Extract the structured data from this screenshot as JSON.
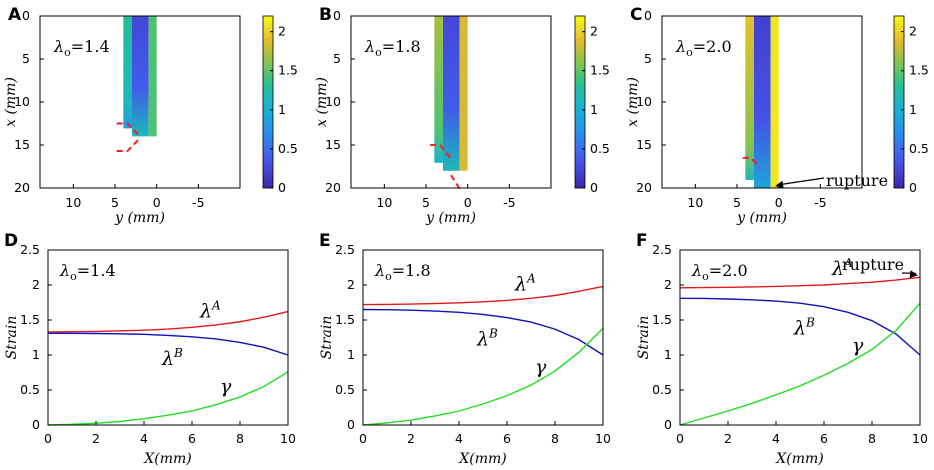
{
  "figure": {
    "panel_letters": [
      "A",
      "B",
      "C",
      "D",
      "E",
      "F"
    ],
    "colorbar": {
      "ticks": [
        "0",
        "0.5",
        "1",
        "1.5",
        "2"
      ],
      "min": 0,
      "max": 2.2
    },
    "map_axes": {
      "ylabel": "x (mm)",
      "xlabel": "y (mm)",
      "yticks": [
        "0",
        "5",
        "10",
        "15",
        "20"
      ],
      "xticks": [
        "10",
        "5",
        "0",
        "-5"
      ]
    }
  },
  "chart_data": [
    {
      "type": "heatmap",
      "panel": "A",
      "annotation": "λo=1.4",
      "xlim": [
        14,
        -10
      ],
      "ylim": [
        0,
        20
      ],
      "strip": {
        "y_left": 4,
        "y_mid": 2,
        "y_right": 0,
        "x_end": 14,
        "left_strip_value": 1.3,
        "core_value": 0.25,
        "right_strip_value": 1.45
      },
      "dashed_boundary": [
        [
          [
            4.8,
            12.5
          ],
          [
            3.5,
            12.5
          ],
          [
            2.2,
            13.8
          ]
        ],
        [
          [
            4.8,
            15.7
          ],
          [
            3.5,
            15.7
          ],
          [
            2.2,
            14.4
          ]
        ]
      ]
    },
    {
      "type": "heatmap",
      "panel": "B",
      "annotation": "λo=1.8",
      "xlim": [
        14,
        -10
      ],
      "ylim": [
        0,
        20
      ],
      "strip": {
        "y_left": 4,
        "y_mid": 2,
        "y_right": 0,
        "x_end": 18,
        "left_strip_value": 1.7,
        "core_value": 0.25,
        "right_strip_value": 1.85
      },
      "dashed_boundary": [
        [
          [
            4.5,
            15
          ],
          [
            3.3,
            15
          ],
          [
            2.0,
            16.6
          ]
        ],
        [
          [
            2.0,
            18.5
          ],
          [
            0.9,
            20.2
          ]
        ]
      ]
    },
    {
      "type": "heatmap",
      "panel": "C",
      "annotation": "λo=2.0",
      "rupture_label": "rupture",
      "xlim": [
        14,
        -10
      ],
      "ylim": [
        0,
        20
      ],
      "strip": {
        "y_left": 4,
        "y_mid": 2,
        "y_right": 0,
        "x_end": 20,
        "left_strip_value": 1.9,
        "core_value": 0.2,
        "right_strip_value": 2.1
      },
      "dashed_boundary": [
        [
          [
            4.3,
            16.5
          ],
          [
            3.3,
            16.5
          ],
          [
            2.3,
            17.6
          ]
        ]
      ]
    },
    {
      "type": "line",
      "panel": "D",
      "annotation": "λo=1.4",
      "xlabel": "X(mm)",
      "ylabel": "Strain",
      "xlim": [
        0,
        10
      ],
      "ylim": [
        0,
        2.5
      ],
      "xticks": [
        "0",
        "2",
        "4",
        "6",
        "8",
        "10"
      ],
      "yticks": [
        "0",
        "0.5",
        "1",
        "1.5",
        "2",
        "2.5"
      ],
      "x": [
        0,
        1,
        2,
        3,
        4,
        5,
        6,
        7,
        8,
        9,
        10
      ],
      "series": [
        {
          "name": "λA",
          "color": "#e41a1c",
          "values": [
            1.33,
            1.333,
            1.337,
            1.345,
            1.355,
            1.37,
            1.395,
            1.43,
            1.475,
            1.54,
            1.62
          ]
        },
        {
          "name": "λB",
          "color": "#1111bb",
          "values": [
            1.31,
            1.31,
            1.307,
            1.302,
            1.295,
            1.28,
            1.26,
            1.23,
            1.18,
            1.11,
            1.0
          ]
        },
        {
          "name": "γ",
          "color": "#22dd22",
          "values": [
            0.0,
            0.01,
            0.025,
            0.05,
            0.09,
            0.14,
            0.2,
            0.29,
            0.4,
            0.55,
            0.76
          ]
        }
      ]
    },
    {
      "type": "line",
      "panel": "E",
      "annotation": "λo=1.8",
      "xlabel": "X(mm)",
      "ylabel": "Strain",
      "xlim": [
        0,
        10
      ],
      "ylim": [
        0,
        2.5
      ],
      "xticks": [
        "0",
        "2",
        "4",
        "6",
        "8",
        "10"
      ],
      "yticks": [
        "0",
        "0.5",
        "1",
        "1.5",
        "2",
        "2.5"
      ],
      "x": [
        0,
        1,
        2,
        3,
        4,
        5,
        6,
        7,
        8,
        9,
        10
      ],
      "series": [
        {
          "name": "λA",
          "color": "#e41a1c",
          "values": [
            1.72,
            1.723,
            1.728,
            1.735,
            1.745,
            1.76,
            1.78,
            1.81,
            1.85,
            1.91,
            1.98
          ]
        },
        {
          "name": "λB",
          "color": "#1111bb",
          "values": [
            1.65,
            1.647,
            1.64,
            1.628,
            1.61,
            1.58,
            1.535,
            1.47,
            1.37,
            1.22,
            1.0
          ]
        },
        {
          "name": "γ",
          "color": "#22dd22",
          "values": [
            0.0,
            0.03,
            0.07,
            0.13,
            0.2,
            0.3,
            0.42,
            0.57,
            0.77,
            1.04,
            1.38
          ]
        }
      ]
    },
    {
      "type": "line",
      "panel": "F",
      "annotation": "λo=2.0",
      "rupture_label": "rupture",
      "xlabel": "X(mm)",
      "ylabel": "Strain",
      "xlim": [
        0,
        10
      ],
      "ylim": [
        0,
        2.5
      ],
      "xticks": [
        "0",
        "2",
        "4",
        "6",
        "8",
        "10"
      ],
      "yticks": [
        "0",
        "0.5",
        "1",
        "1.5",
        "2",
        "2.5"
      ],
      "x": [
        0,
        1,
        2,
        3,
        4,
        5,
        6,
        7,
        8,
        9,
        10
      ],
      "series": [
        {
          "name": "λA",
          "color": "#e41a1c",
          "values": [
            1.96,
            1.963,
            1.967,
            1.973,
            1.98,
            1.99,
            2.0,
            2.02,
            2.04,
            2.07,
            2.11
          ]
        },
        {
          "name": "λB",
          "color": "#1111bb",
          "values": [
            1.81,
            1.808,
            1.8,
            1.788,
            1.77,
            1.74,
            1.69,
            1.61,
            1.49,
            1.3,
            1.0
          ]
        },
        {
          "name": "γ",
          "color": "#22dd22",
          "values": [
            0.0,
            0.1,
            0.2,
            0.31,
            0.43,
            0.56,
            0.71,
            0.88,
            1.08,
            1.35,
            1.74
          ]
        }
      ]
    }
  ]
}
